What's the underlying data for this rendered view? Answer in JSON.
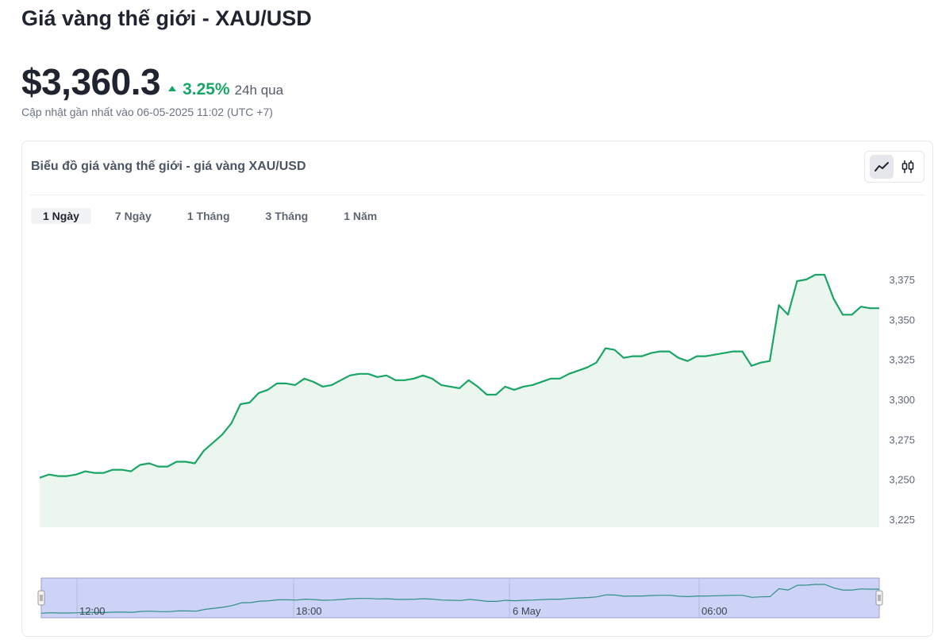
{
  "header": {
    "title": "Giá vàng thế giới - XAU/USD",
    "price": "$3,360.3",
    "change_pct": "3.25%",
    "change_period": "24h qua",
    "updated": "Cập nhật gần nhất vào 06-05-2025 11:02 (UTC +7)"
  },
  "card": {
    "title": "Biểu đồ giá vàng thế giới - giá vàng XAU/USD",
    "chart_type_toggle": [
      {
        "icon": "line-chart-icon",
        "active": true
      },
      {
        "icon": "candlestick-icon",
        "active": false
      }
    ],
    "tabs": [
      {
        "label": "1 Ngày",
        "active": true
      },
      {
        "label": "7 Ngày",
        "active": false
      },
      {
        "label": "1 Tháng",
        "active": false
      },
      {
        "label": "3 Tháng",
        "active": false
      },
      {
        "label": "1 Năm",
        "active": false
      }
    ]
  },
  "colors": {
    "line": "#1aa566",
    "area": "#ebf6ef",
    "navigator": "#cdd3f6",
    "navigator_line": "#2f8f87",
    "up": "#1aa566"
  },
  "chart_data": {
    "type": "area",
    "title": "",
    "xlabel": "",
    "ylabel": "",
    "ylim": [
      3225,
      3380
    ],
    "yticks": [
      "3,375",
      "3,350",
      "3,325",
      "3,300",
      "3,275",
      "3,250",
      "3,225"
    ],
    "ytick_values": [
      3375,
      3350,
      3325,
      3300,
      3275,
      3250,
      3225
    ],
    "series": [
      {
        "values": [
          3251,
          3253,
          3252,
          3252,
          3253,
          3255,
          3254,
          3254,
          3256,
          3256,
          3255,
          3259,
          3260,
          3258,
          3258,
          3261,
          3261,
          3260,
          3268,
          3273,
          3278,
          3285,
          3297,
          3298,
          3304,
          3306,
          3310,
          3310,
          3309,
          3313,
          3311,
          3308,
          3309,
          3312,
          3315,
          3316,
          3316,
          3314,
          3315,
          3312,
          3312,
          3313,
          3315,
          3313,
          3309,
          3308,
          3307,
          3312,
          3308,
          3303,
          3303,
          3308,
          3306,
          3308,
          3309,
          3311,
          3313,
          3313,
          3316,
          3318,
          3320,
          3323,
          3332,
          3331,
          3326,
          3327,
          3327,
          3329,
          3330,
          3330,
          3326,
          3324,
          3327,
          3327,
          3328,
          3329,
          3330,
          3330,
          3321,
          3323,
          3324,
          3359,
          3353,
          3374,
          3375,
          3378,
          3378,
          3363,
          3353,
          3353,
          3358,
          3357,
          3357
        ]
      }
    ],
    "navigator": {
      "x_labels": [
        "12:00",
        "18:00",
        "6 May",
        "06:00"
      ]
    }
  }
}
